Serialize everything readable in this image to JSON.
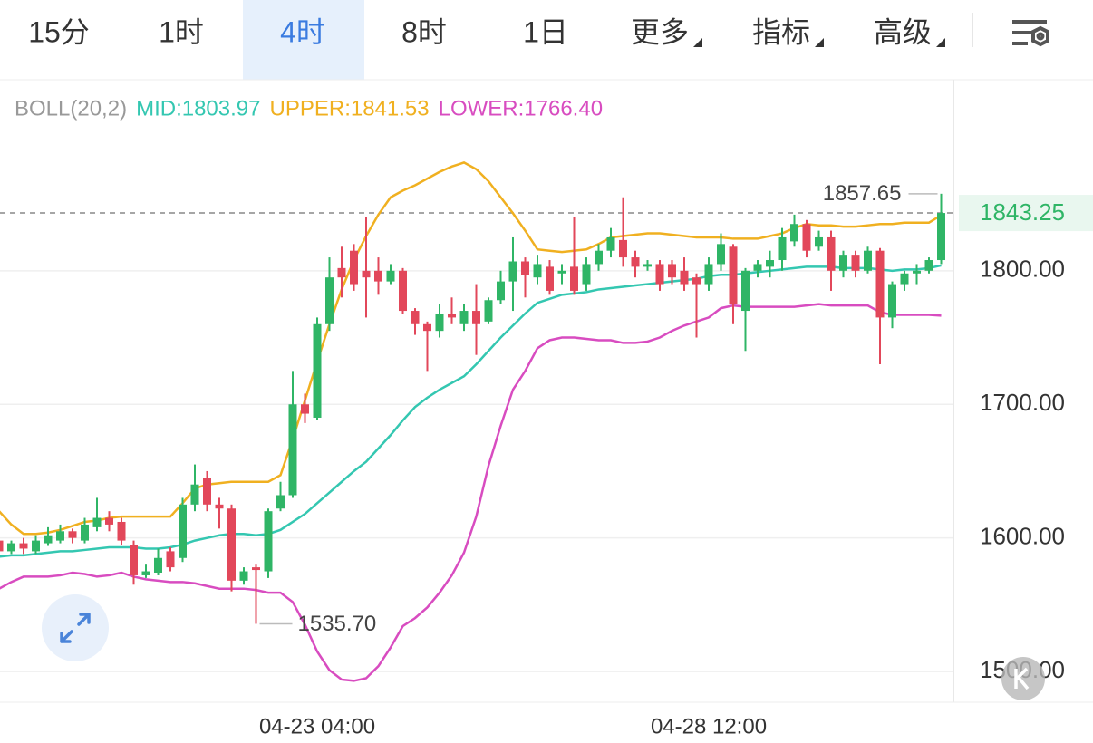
{
  "tabs": [
    "15分",
    "1时",
    "4时",
    "8时",
    "1日",
    "更多",
    "指标",
    "高级"
  ],
  "active_tab": 2,
  "chart_data": {
    "type": "candlestick",
    "indicator": "BOLL(20,2)",
    "categories": [
      null,
      null,
      null,
      null,
      null,
      null,
      null,
      null,
      null,
      null,
      null,
      null,
      null,
      null,
      null,
      null,
      null,
      null,
      null,
      null,
      null,
      null,
      null,
      null,
      null,
      null,
      "04-23 04:00",
      null,
      null,
      null,
      null,
      null,
      null,
      null,
      null,
      null,
      null,
      null,
      null,
      null,
      null,
      null,
      null,
      null,
      null,
      null,
      null,
      null,
      null,
      null,
      null,
      null,
      null,
      null,
      null,
      null,
      null,
      null,
      "04-28 12:00",
      null,
      null,
      null,
      null,
      null,
      null,
      null,
      null,
      null,
      null,
      null,
      null,
      null,
      null,
      null,
      null,
      null,
      null,
      null
    ],
    "open": [
      1598,
      1590,
      1596,
      1590,
      1596,
      1598,
      1605,
      1598,
      1608,
      1615,
      1612,
      1595,
      1572,
      1574,
      1590,
      1585,
      1625,
      1645,
      1625,
      1622,
      1568,
      1578,
      1575,
      1622,
      1632,
      1700,
      1690,
      1760,
      1802,
      1815,
      1800,
      1800,
      1792,
      1800,
      1770,
      1760,
      1755,
      1768,
      1760,
      1770,
      1762,
      1778,
      1792,
      1807,
      1795,
      1803,
      1798,
      1803,
      1790,
      1805,
      1815,
      1823,
      1810,
      1803,
      1805,
      1805,
      1800,
      1795,
      1790,
      1805,
      1818,
      1770,
      1800,
      1803,
      1808,
      1822,
      1835,
      1818,
      1825,
      1800,
      1812,
      1800,
      1815,
      1765,
      1790,
      1798,
      1800,
      1808
    ],
    "high": [
      1600,
      1598,
      1600,
      1602,
      1608,
      1610,
      1607,
      1615,
      1630,
      1620,
      1615,
      1598,
      1580,
      1592,
      1593,
      1630,
      1655,
      1650,
      1630,
      1625,
      1578,
      1580,
      1622,
      1642,
      1725,
      1708,
      1765,
      1810,
      1818,
      1820,
      1840,
      1810,
      1805,
      1802,
      1772,
      1762,
      1775,
      1780,
      1775,
      1790,
      1780,
      1800,
      1825,
      1810,
      1812,
      1808,
      1805,
      1840,
      1810,
      1820,
      1832,
      1855,
      1815,
      1808,
      1808,
      1808,
      1810,
      1798,
      1810,
      1828,
      1820,
      1802,
      1808,
      1815,
      1832,
      1842,
      1838,
      1830,
      1830,
      1815,
      1815,
      1818,
      1817,
      1792,
      1800,
      1805,
      1810,
      1857.65
    ],
    "low": [
      1587,
      1588,
      1588,
      1588,
      1594,
      1596,
      1596,
      1596,
      1605,
      1605,
      1595,
      1565,
      1570,
      1572,
      1575,
      1582,
      1620,
      1620,
      1607,
      1560,
      1565,
      1535.7,
      1570,
      1620,
      1630,
      1686,
      1688,
      1755,
      1780,
      1785,
      1765,
      1782,
      1790,
      1768,
      1752,
      1725,
      1750,
      1760,
      1755,
      1737,
      1760,
      1775,
      1770,
      1780,
      1790,
      1782,
      1790,
      1782,
      1785,
      1800,
      1810,
      1803,
      1795,
      1800,
      1785,
      1790,
      1785,
      1750,
      1785,
      1800,
      1760,
      1740,
      1795,
      1795,
      1800,
      1818,
      1810,
      1815,
      1785,
      1795,
      1795,
      1798,
      1730,
      1757,
      1785,
      1790,
      1798,
      1805
    ],
    "close": [
      1590,
      1596,
      1592,
      1598,
      1602,
      1605,
      1600,
      1610,
      1615,
      1610,
      1598,
      1572,
      1575,
      1585,
      1578,
      1625,
      1640,
      1625,
      1622,
      1568,
      1575,
      1576,
      1620,
      1632,
      1700,
      1693,
      1760,
      1795,
      1795,
      1790,
      1795,
      1792,
      1800,
      1770,
      1760,
      1755,
      1768,
      1765,
      1770,
      1760,
      1778,
      1792,
      1807,
      1797,
      1805,
      1785,
      1800,
      1785,
      1805,
      1815,
      1825,
      1810,
      1803,
      1805,
      1790,
      1795,
      1790,
      1790,
      1805,
      1820,
      1775,
      1800,
      1805,
      1808,
      1825,
      1835,
      1815,
      1825,
      1800,
      1812,
      1800,
      1815,
      1765,
      1790,
      1798,
      1800,
      1808,
      1843.25
    ],
    "up_color": "#2fb566",
    "down_color": "#e2475a",
    "series": [
      {
        "name": "MID:1803.97",
        "color": "#34c7b1",
        "values": [
          1586,
          1587,
          1587,
          1588,
          1589,
          1590,
          1590,
          1591,
          1592,
          1593,
          1593,
          1593,
          1592,
          1592,
          1593,
          1595,
          1598,
          1600,
          1602,
          1603,
          1603,
          1602,
          1603,
          1606,
          1612,
          1618,
          1626,
          1634,
          1642,
          1650,
          1657,
          1667,
          1677,
          1688,
          1698,
          1705,
          1711,
          1716,
          1721,
          1730,
          1740,
          1750,
          1759,
          1768,
          1776,
          1779,
          1782,
          1783,
          1784,
          1786,
          1787,
          1788,
          1789,
          1790,
          1791,
          1792,
          1793,
          1794,
          1796,
          1797,
          1797,
          1798,
          1799,
          1800,
          1801,
          1802,
          1803,
          1803,
          1803,
          1802,
          1802,
          1802,
          1801,
          1800,
          1801,
          1801,
          1802,
          1803.97
        ]
      },
      {
        "name": "UPPER:1841.53",
        "color": "#f0b020",
        "values": [
          1620,
          1610,
          1603,
          1603,
          1604,
          1606,
          1609,
          1612,
          1613,
          1615,
          1616,
          1616,
          1616,
          1616,
          1616,
          1626,
          1637,
          1640,
          1641,
          1642,
          1642,
          1642,
          1642,
          1647,
          1674,
          1703,
          1732,
          1760,
          1786,
          1808,
          1826,
          1842,
          1855,
          1860,
          1864,
          1869,
          1874,
          1878,
          1881,
          1876,
          1867,
          1855,
          1843,
          1830,
          1816,
          1815,
          1814,
          1815,
          1816,
          1820,
          1825,
          1826,
          1827,
          1828,
          1828,
          1827,
          1826,
          1825,
          1825,
          1825,
          1824,
          1824,
          1824,
          1826,
          1828,
          1832,
          1835,
          1834,
          1834,
          1833,
          1833,
          1834,
          1835,
          1835,
          1836,
          1836,
          1836,
          1841.53
        ]
      },
      {
        "name": "LOWER:1766.40",
        "color": "#d84cc0",
        "values": [
          1562,
          1567,
          1571,
          1571,
          1571,
          1572,
          1574,
          1573,
          1571,
          1572,
          1574,
          1571,
          1569,
          1568,
          1567,
          1567,
          1566,
          1564,
          1562,
          1562,
          1562,
          1561,
          1559,
          1559,
          1552,
          1535,
          1515,
          1501,
          1494,
          1493,
          1495,
          1504,
          1518,
          1534,
          1540,
          1548,
          1559,
          1572,
          1589,
          1616,
          1654,
          1684,
          1711,
          1725,
          1742,
          1748,
          1750,
          1750,
          1749,
          1748,
          1748,
          1746,
          1746,
          1747,
          1750,
          1755,
          1759,
          1762,
          1765,
          1772,
          1774,
          1773,
          1773,
          1773,
          1773,
          1773,
          1774,
          1775,
          1774,
          1774,
          1774,
          1774,
          1769,
          1767,
          1767,
          1767,
          1767,
          1766.4
        ]
      }
    ],
    "last_price": 1843.25,
    "annotations": [
      {
        "value": 1857.65,
        "label": "1857.65"
      },
      {
        "value": 1535.7,
        "label": "1535.70"
      }
    ],
    "ylim": [
      1477,
      1943
    ],
    "yticks": [
      {
        "value": 1500,
        "label": "1500.00"
      },
      {
        "value": 1600,
        "label": "1600.00"
      },
      {
        "value": 1700,
        "label": "1700.00"
      },
      {
        "value": 1800,
        "label": "1800.00"
      }
    ],
    "grid": true
  }
}
